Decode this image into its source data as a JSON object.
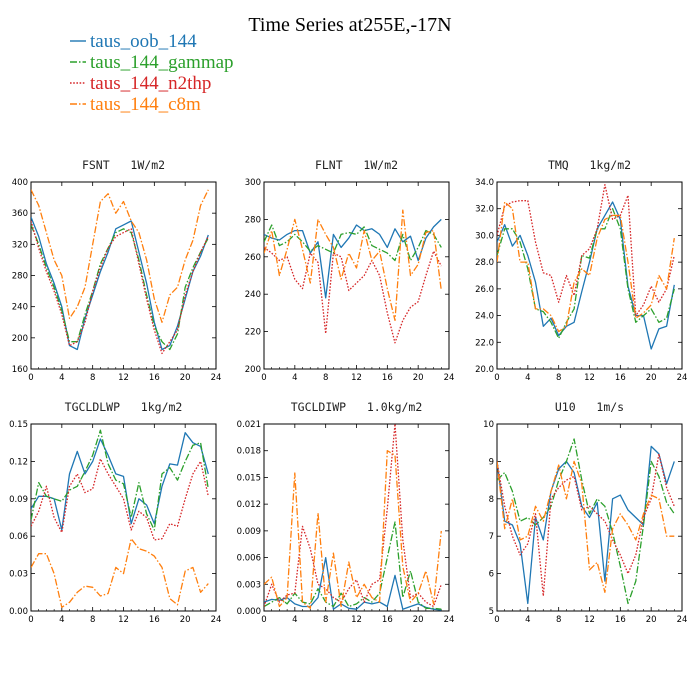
{
  "title": "Time Series at255E,-17N",
  "legend": {
    "location": "top-left",
    "entries": [
      {
        "name": "taus_oob_144",
        "color": "#1f77b4",
        "dash": "solid"
      },
      {
        "name": "taus_144_gammap",
        "color": "#2ca02c",
        "dash": "dashdot"
      },
      {
        "name": "taus_144_n2thp",
        "color": "#d62728",
        "dash": "dotted"
      },
      {
        "name": "taus_144_c8m",
        "color": "#ff7f0e",
        "dash": "dashdot"
      }
    ]
  },
  "chart_data": [
    {
      "type": "line",
      "title": "FSNT   1W/m2",
      "xlim": [
        0,
        24
      ],
      "ylim": [
        160,
        400
      ],
      "xticks": [
        0,
        4,
        8,
        12,
        16,
        20,
        24
      ],
      "yticks": [
        160,
        200,
        240,
        280,
        320,
        360,
        400
      ],
      "ytick_labels": [
        "160",
        "200",
        "240",
        "280",
        "320",
        "360",
        "400"
      ],
      "x": [
        0,
        1,
        2,
        3,
        4,
        5,
        6,
        7,
        8,
        9,
        10,
        11,
        12,
        13,
        14,
        15,
        16,
        17,
        18,
        19,
        20,
        21,
        22,
        23
      ],
      "series": [
        {
          "name": "taus_oob_144",
          "values": [
            355,
            330,
            295,
            270,
            240,
            190,
            185,
            225,
            255,
            285,
            310,
            340,
            345,
            350,
            310,
            270,
            220,
            185,
            190,
            215,
            250,
            285,
            305,
            332
          ]
        },
        {
          "name": "taus_144_gammap",
          "values": [
            345,
            320,
            290,
            265,
            235,
            195,
            195,
            230,
            260,
            295,
            315,
            335,
            340,
            335,
            300,
            255,
            215,
            195,
            185,
            205,
            265,
            290,
            310,
            328
          ]
        },
        {
          "name": "taus_144_n2thp",
          "values": [
            350,
            315,
            285,
            260,
            230,
            190,
            195,
            220,
            260,
            290,
            315,
            330,
            335,
            340,
            295,
            250,
            210,
            180,
            195,
            210,
            255,
            285,
            310,
            330
          ]
        },
        {
          "name": "taus_144_c8m",
          "values": [
            390,
            370,
            335,
            300,
            280,
            225,
            240,
            265,
            320,
            375,
            385,
            360,
            375,
            350,
            335,
            300,
            250,
            220,
            255,
            265,
            300,
            325,
            370,
            390
          ]
        }
      ]
    },
    {
      "type": "line",
      "title": "FLNT   1W/m2",
      "xlim": [
        0,
        24
      ],
      "ylim": [
        200,
        300
      ],
      "xticks": [
        0,
        4,
        8,
        12,
        16,
        20,
        24
      ],
      "yticks": [
        200,
        220,
        240,
        260,
        280,
        300
      ],
      "ytick_labels": [
        "200",
        "220",
        "240",
        "260",
        "280",
        "300"
      ],
      "x": [
        0,
        1,
        2,
        3,
        4,
        5,
        6,
        7,
        8,
        9,
        10,
        11,
        12,
        13,
        14,
        15,
        16,
        17,
        18,
        19,
        20,
        21,
        22,
        23
      ],
      "series": [
        {
          "name": "taus_oob_144",
          "values": [
            272,
            270,
            269,
            272,
            274,
            274,
            262,
            268,
            238,
            272,
            265,
            270,
            277,
            274,
            275,
            272,
            265,
            275,
            268,
            271,
            258,
            270,
            276,
            280
          ]
        },
        {
          "name": "taus_144_gammap",
          "values": [
            268,
            277,
            266,
            268,
            272,
            268,
            263,
            266,
            264,
            262,
            272,
            273,
            272,
            276,
            266,
            264,
            262,
            258,
            272,
            258,
            265,
            274,
            272,
            265
          ]
        },
        {
          "name": "taus_144_n2thp",
          "values": [
            265,
            262,
            258,
            260,
            248,
            243,
            262,
            257,
            219,
            262,
            260,
            242,
            246,
            250,
            258,
            250,
            230,
            214,
            226,
            233,
            236,
            250,
            263,
            255
          ]
        },
        {
          "name": "taus_144_c8m",
          "values": [
            262,
            274,
            250,
            264,
            280,
            264,
            246,
            280,
            272,
            265,
            248,
            262,
            254,
            274,
            258,
            263,
            243,
            226,
            285,
            250,
            256,
            273,
            274,
            242
          ]
        }
      ]
    },
    {
      "type": "line",
      "title": "TMQ   1kg/m2",
      "xlim": [
        0,
        24
      ],
      "ylim": [
        20,
        34
      ],
      "xticks": [
        0,
        4,
        8,
        12,
        16,
        20,
        24
      ],
      "yticks": [
        20,
        22,
        24,
        26,
        28,
        30,
        32,
        34
      ],
      "ytick_labels": [
        "20.0",
        "22.0",
        "24.0",
        "26.0",
        "28.0",
        "30.0",
        "32.0",
        "34.0"
      ],
      "x": [
        0,
        1,
        2,
        3,
        4,
        5,
        6,
        7,
        8,
        9,
        10,
        11,
        12,
        13,
        14,
        15,
        16,
        17,
        18,
        19,
        20,
        21,
        22,
        23
      ],
      "series": [
        {
          "name": "taus_oob_144",
          "values": [
            29.5,
            30.8,
            29.2,
            30.0,
            28.5,
            26.5,
            23.2,
            23.8,
            22.5,
            23.2,
            23.5,
            25.8,
            28.0,
            30.5,
            31.5,
            32.5,
            31.2,
            26.2,
            24.0,
            24.0,
            21.5,
            23.0,
            23.2,
            26.3
          ]
        },
        {
          "name": "taus_144_gammap",
          "values": [
            28.5,
            30.5,
            30.5,
            29.5,
            27.5,
            24.5,
            24.3,
            23.5,
            22.3,
            23.5,
            24.5,
            28.5,
            28.3,
            30.5,
            30.5,
            32.0,
            30.5,
            26.0,
            23.5,
            24.0,
            24.5,
            23.5,
            23.8,
            26.0
          ]
        },
        {
          "name": "taus_144_n2thp",
          "values": [
            30.0,
            32.2,
            32.5,
            32.6,
            32.6,
            29.5,
            27.2,
            27.0,
            25.0,
            27.0,
            25.5,
            28.5,
            29.0,
            30.5,
            33.8,
            31.2,
            31.5,
            33.0,
            24.0,
            24.8,
            26.2,
            25.0,
            26.0,
            28.5
          ]
        },
        {
          "name": "taus_144_c8m",
          "values": [
            28.0,
            32.5,
            32.0,
            28.0,
            28.0,
            24.5,
            24.5,
            24.0,
            22.8,
            23.2,
            26.5,
            27.5,
            27.0,
            29.8,
            31.2,
            31.5,
            31.5,
            28.0,
            23.8,
            24.2,
            24.8,
            27.0,
            26.0,
            29.8
          ]
        }
      ]
    },
    {
      "type": "line",
      "title": "TGCLDLWP   1kg/m2",
      "xlim": [
        0,
        24
      ],
      "ylim": [
        0,
        0.15
      ],
      "xticks": [
        0,
        4,
        8,
        12,
        16,
        20,
        24
      ],
      "yticks": [
        0,
        0.03,
        0.06,
        0.09,
        0.12,
        0.15
      ],
      "ytick_labels": [
        "0.00",
        "0.03",
        "0.06",
        "0.09",
        "0.12",
        "0.15"
      ],
      "x": [
        0,
        1,
        2,
        3,
        4,
        5,
        6,
        7,
        8,
        9,
        10,
        11,
        12,
        13,
        14,
        15,
        16,
        17,
        18,
        19,
        20,
        21,
        22,
        23
      ],
      "series": [
        {
          "name": "taus_oob_144",
          "values": [
            0.082,
            0.092,
            0.092,
            0.09,
            0.065,
            0.11,
            0.128,
            0.11,
            0.12,
            0.138,
            0.125,
            0.11,
            0.108,
            0.07,
            0.09,
            0.085,
            0.07,
            0.1,
            0.118,
            0.117,
            0.143,
            0.135,
            0.132,
            0.11
          ]
        },
        {
          "name": "taus_144_gammap",
          "values": [
            0.073,
            0.103,
            0.092,
            0.09,
            0.088,
            0.097,
            0.1,
            0.112,
            0.125,
            0.145,
            0.118,
            0.105,
            0.102,
            0.075,
            0.103,
            0.078,
            0.065,
            0.11,
            0.115,
            0.105,
            0.12,
            0.133,
            0.135,
            0.098
          ]
        },
        {
          "name": "taus_144_n2thp",
          "values": [
            0.068,
            0.08,
            0.1,
            0.075,
            0.063,
            0.1,
            0.11,
            0.095,
            0.098,
            0.122,
            0.11,
            0.1,
            0.09,
            0.065,
            0.08,
            0.075,
            0.057,
            0.058,
            0.07,
            0.068,
            0.09,
            0.11,
            0.12,
            0.092
          ]
        },
        {
          "name": "taus_144_c8m",
          "values": [
            0.035,
            0.046,
            0.046,
            0.03,
            0.003,
            0.007,
            0.015,
            0.02,
            0.019,
            0.012,
            0.014,
            0.035,
            0.03,
            0.058,
            0.05,
            0.048,
            0.044,
            0.035,
            0.01,
            0.005,
            0.032,
            0.035,
            0.015,
            0.022
          ]
        }
      ]
    },
    {
      "type": "line",
      "title": "TGCLDIWP   1.0kg/m2",
      "xlim": [
        0,
        24
      ],
      "ylim": [
        0,
        0.021
      ],
      "xticks": [
        0,
        4,
        8,
        12,
        16,
        20,
        24
      ],
      "yticks": [
        0,
        0.003,
        0.006,
        0.009,
        0.012,
        0.015,
        0.018,
        0.021
      ],
      "ytick_labels": [
        "0.000",
        "0.003",
        "0.006",
        "0.009",
        "0.012",
        "0.015",
        "0.018",
        "0.021"
      ],
      "x": [
        0,
        1,
        2,
        3,
        4,
        5,
        6,
        7,
        8,
        9,
        10,
        11,
        12,
        13,
        14,
        15,
        16,
        17,
        18,
        19,
        20,
        21,
        22,
        23
      ],
      "series": [
        {
          "name": "taus_oob_144",
          "values": [
            0.001,
            0.0013,
            0.0012,
            0.0015,
            0.0008,
            0.0005,
            0.0005,
            0.0015,
            0.006,
            0.0002,
            0.0008,
            0.0003,
            0.0002,
            0.001,
            0.0008,
            0.001,
            0.0005,
            0.004,
            0.0002,
            0.0005,
            0.0008,
            0.0004,
            0.0002,
            0.0001
          ]
        },
        {
          "name": "taus_144_gammap",
          "values": [
            0.0005,
            0.001,
            0.0015,
            0.0008,
            0.002,
            0.001,
            0.0008,
            0.0025,
            0.001,
            0.0005,
            0.002,
            0.0005,
            0.0008,
            0.0015,
            0.001,
            0.002,
            0.006,
            0.01,
            0.0015,
            0.0045,
            0.001,
            0.0003,
            0.0003,
            0.0002
          ]
        },
        {
          "name": "taus_144_n2thp",
          "values": [
            0.0005,
            0.003,
            0.001,
            0.0018,
            0.002,
            0.0095,
            0.007,
            0.003,
            0.0025,
            0.0015,
            0.001,
            0.0025,
            0.0035,
            0.001,
            0.003,
            0.0035,
            0.0115,
            0.021,
            0.008,
            0.0015,
            0.002,
            0.001,
            0.0005,
            0.003
          ]
        },
        {
          "name": "taus_144_c8m",
          "values": [
            0.003,
            0.0038,
            0.0005,
            0.0015,
            0.0155,
            0.001,
            0.0003,
            0.011,
            0.001,
            0.0065,
            0.0005,
            0.0055,
            0.0015,
            0.003,
            0.0015,
            0.001,
            0.018,
            0.0175,
            0.005,
            0.001,
            0.002,
            0.0045,
            0.0008,
            0.009
          ]
        }
      ]
    },
    {
      "type": "line",
      "title": "U10   1m/s",
      "xlim": [
        0,
        24
      ],
      "ylim": [
        5,
        10
      ],
      "xticks": [
        0,
        4,
        8,
        12,
        16,
        20,
        24
      ],
      "yticks": [
        5,
        6,
        7,
        8,
        9,
        10
      ],
      "ytick_labels": [
        "5",
        "6",
        "7",
        "8",
        "9",
        "10"
      ],
      "x": [
        0,
        1,
        2,
        3,
        4,
        5,
        6,
        7,
        8,
        9,
        10,
        11,
        12,
        13,
        14,
        15,
        16,
        17,
        18,
        19,
        20,
        21,
        22,
        23
      ],
      "series": [
        {
          "name": "taus_oob_144",
          "values": [
            9.0,
            7.4,
            7.3,
            6.8,
            5.2,
            7.5,
            6.9,
            8.2,
            8.8,
            9.0,
            8.7,
            7.8,
            7.5,
            7.9,
            5.8,
            8.0,
            8.1,
            7.7,
            7.5,
            7.3,
            9.4,
            9.2,
            8.4,
            9.0
          ]
        },
        {
          "name": "taus_144_gammap",
          "values": [
            8.5,
            8.7,
            8.2,
            7.4,
            7.5,
            7.3,
            7.5,
            7.8,
            8.5,
            9.0,
            9.6,
            8.5,
            7.6,
            8.0,
            7.8,
            7.1,
            6.2,
            5.2,
            5.8,
            7.3,
            9.0,
            8.6,
            7.9,
            7.6
          ]
        },
        {
          "name": "taus_144_n2thp",
          "values": [
            9.0,
            7.8,
            7.0,
            6.5,
            6.8,
            7.6,
            5.4,
            8.0,
            8.3,
            8.5,
            8.6,
            7.7,
            7.8,
            7.6,
            7.4,
            6.9,
            6.5,
            6.0,
            6.5,
            7.5,
            8.0,
            9.2,
            8.3,
            7.8
          ]
        },
        {
          "name": "taus_144_c8m",
          "values": [
            9.0,
            7.2,
            8.0,
            6.9,
            7.0,
            7.8,
            7.4,
            8.2,
            8.9,
            8.0,
            9.0,
            8.4,
            6.1,
            6.3,
            5.5,
            7.2,
            7.6,
            7.3,
            6.9,
            7.6,
            8.1,
            8.0,
            7.0,
            7.0
          ]
        }
      ]
    }
  ]
}
